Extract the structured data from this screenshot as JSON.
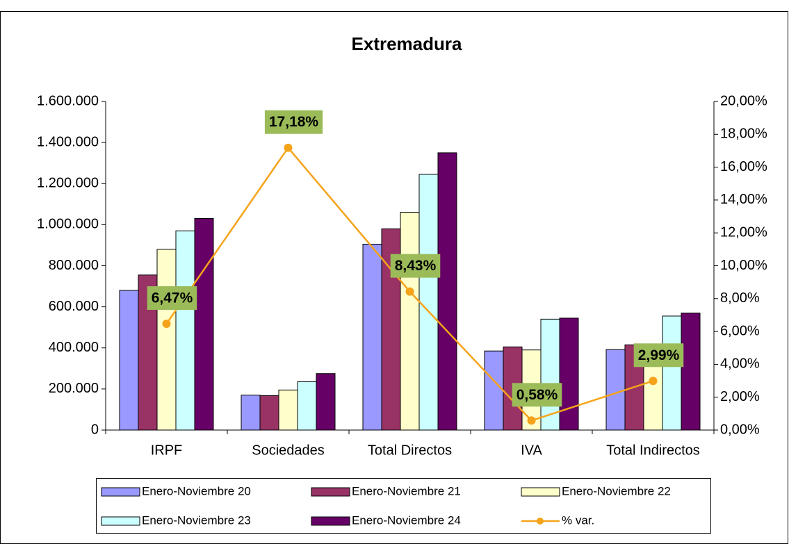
{
  "chart_data": {
    "type": "bar",
    "title": "Extremadura",
    "categories": [
      "IRPF",
      "Sociedades",
      "Total Directos",
      "IVA",
      "Total Indirectos"
    ],
    "series": [
      {
        "name": "Enero-Noviembre 20",
        "color": "#9999ff",
        "values": [
          680000,
          170000,
          905000,
          385000,
          392000
        ]
      },
      {
        "name": "Enero-Noviembre 21",
        "color": "#993366",
        "values": [
          755000,
          168000,
          980000,
          405000,
          415000
        ]
      },
      {
        "name": "Enero-Noviembre 22",
        "color": "#ffffcc",
        "values": [
          880000,
          195000,
          1060000,
          390000,
          400000
        ]
      },
      {
        "name": "Enero-Noviembre 23",
        "color": "#ccffff",
        "values": [
          970000,
          235000,
          1245000,
          540000,
          555000
        ]
      },
      {
        "name": "Enero-Noviembre 24",
        "color": "#660066",
        "values": [
          1030000,
          275000,
          1350000,
          545000,
          570000
        ]
      },
      {
        "name": "% var.",
        "type": "line",
        "axis": "y2",
        "color": "#f5a31a",
        "values": [
          6.47,
          17.18,
          8.43,
          0.58,
          2.99
        ],
        "value_labels": [
          "6,47%",
          "17,18%",
          "8,43%",
          "0,58%",
          "2,99%"
        ],
        "label_color": "#9bbb59"
      }
    ],
    "ylim": [
      0,
      1600000
    ],
    "yticks": [
      0,
      {
        "value": 200000,
        "label": "200.000"
      },
      {
        "value": 400000,
        "label": "400.000"
      },
      {
        "value": 600000,
        "label": "600.000"
      },
      {
        "value": 800000,
        "label": "800.000"
      },
      {
        "value": 1000000,
        "label": "1.000.000"
      },
      {
        "value": 1200000,
        "label": "1.200.000"
      },
      {
        "value": 1400000,
        "label": "1.400.000"
      },
      {
        "value": 1600000,
        "label": "1.600.000"
      }
    ],
    "y2lim": [
      0,
      20
    ],
    "y2ticks": [
      {
        "value": 0,
        "label": "0,00%"
      },
      {
        "value": 2,
        "label": "2,00%"
      },
      {
        "value": 4,
        "label": "4,00%"
      },
      {
        "value": 6,
        "label": "6,00%"
      },
      {
        "value": 8,
        "label": "8,00%"
      },
      {
        "value": 10,
        "label": "10,00%"
      },
      {
        "value": 12,
        "label": "12,00%"
      },
      {
        "value": 14,
        "label": "14,00%"
      },
      {
        "value": 16,
        "label": "16,00%"
      },
      {
        "value": 18,
        "label": "18,00%"
      },
      {
        "value": 20,
        "label": "20,00%"
      }
    ],
    "legend": "bottom"
  }
}
